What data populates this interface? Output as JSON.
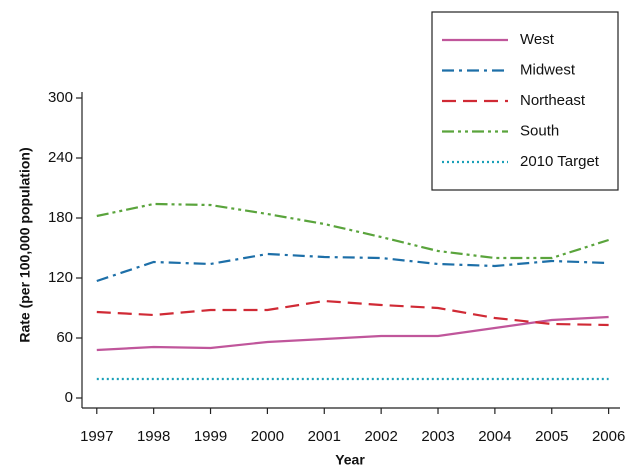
{
  "chart_data": {
    "type": "line",
    "x_label": "Year",
    "y_label": "Rate (per 100,000 population)",
    "x": [
      1997,
      1998,
      1999,
      2000,
      2001,
      2002,
      2003,
      2004,
      2005,
      2006
    ],
    "xlim": [
      1996.74,
      2006.2
    ],
    "xticks": [
      1997,
      1998,
      1999,
      2000,
      2001,
      2002,
      2003,
      2004,
      2005,
      2006
    ],
    "ylim": [
      -10,
      306
    ],
    "yticks": [
      0,
      60,
      120,
      180,
      240,
      300
    ],
    "legend": "upper right",
    "series": [
      {
        "name": "West",
        "color": "#c0569b",
        "dash": "solid",
        "values": [
          48,
          51,
          50,
          56,
          59,
          62,
          62,
          70,
          78,
          81
        ]
      },
      {
        "name": "Midwest",
        "color": "#1d6fa8",
        "dash": "dashdot",
        "values": [
          117,
          136,
          134,
          144,
          141,
          140,
          134,
          132,
          137,
          135
        ]
      },
      {
        "name": "Northeast",
        "color": "#d02a35",
        "dash": "dashed",
        "values": [
          86,
          83,
          88,
          88,
          97,
          93,
          90,
          80,
          74,
          73
        ]
      },
      {
        "name": "South",
        "color": "#5aa43c",
        "dash": "dashdotdot",
        "values": [
          182,
          194,
          193,
          184,
          174,
          161,
          147,
          140,
          140,
          158
        ]
      },
      {
        "name": "2010 Target",
        "color": "#1aa0b8",
        "dash": "dotted",
        "values": [
          19,
          19,
          19,
          19,
          19,
          19,
          19,
          19,
          19,
          19
        ]
      }
    ]
  }
}
